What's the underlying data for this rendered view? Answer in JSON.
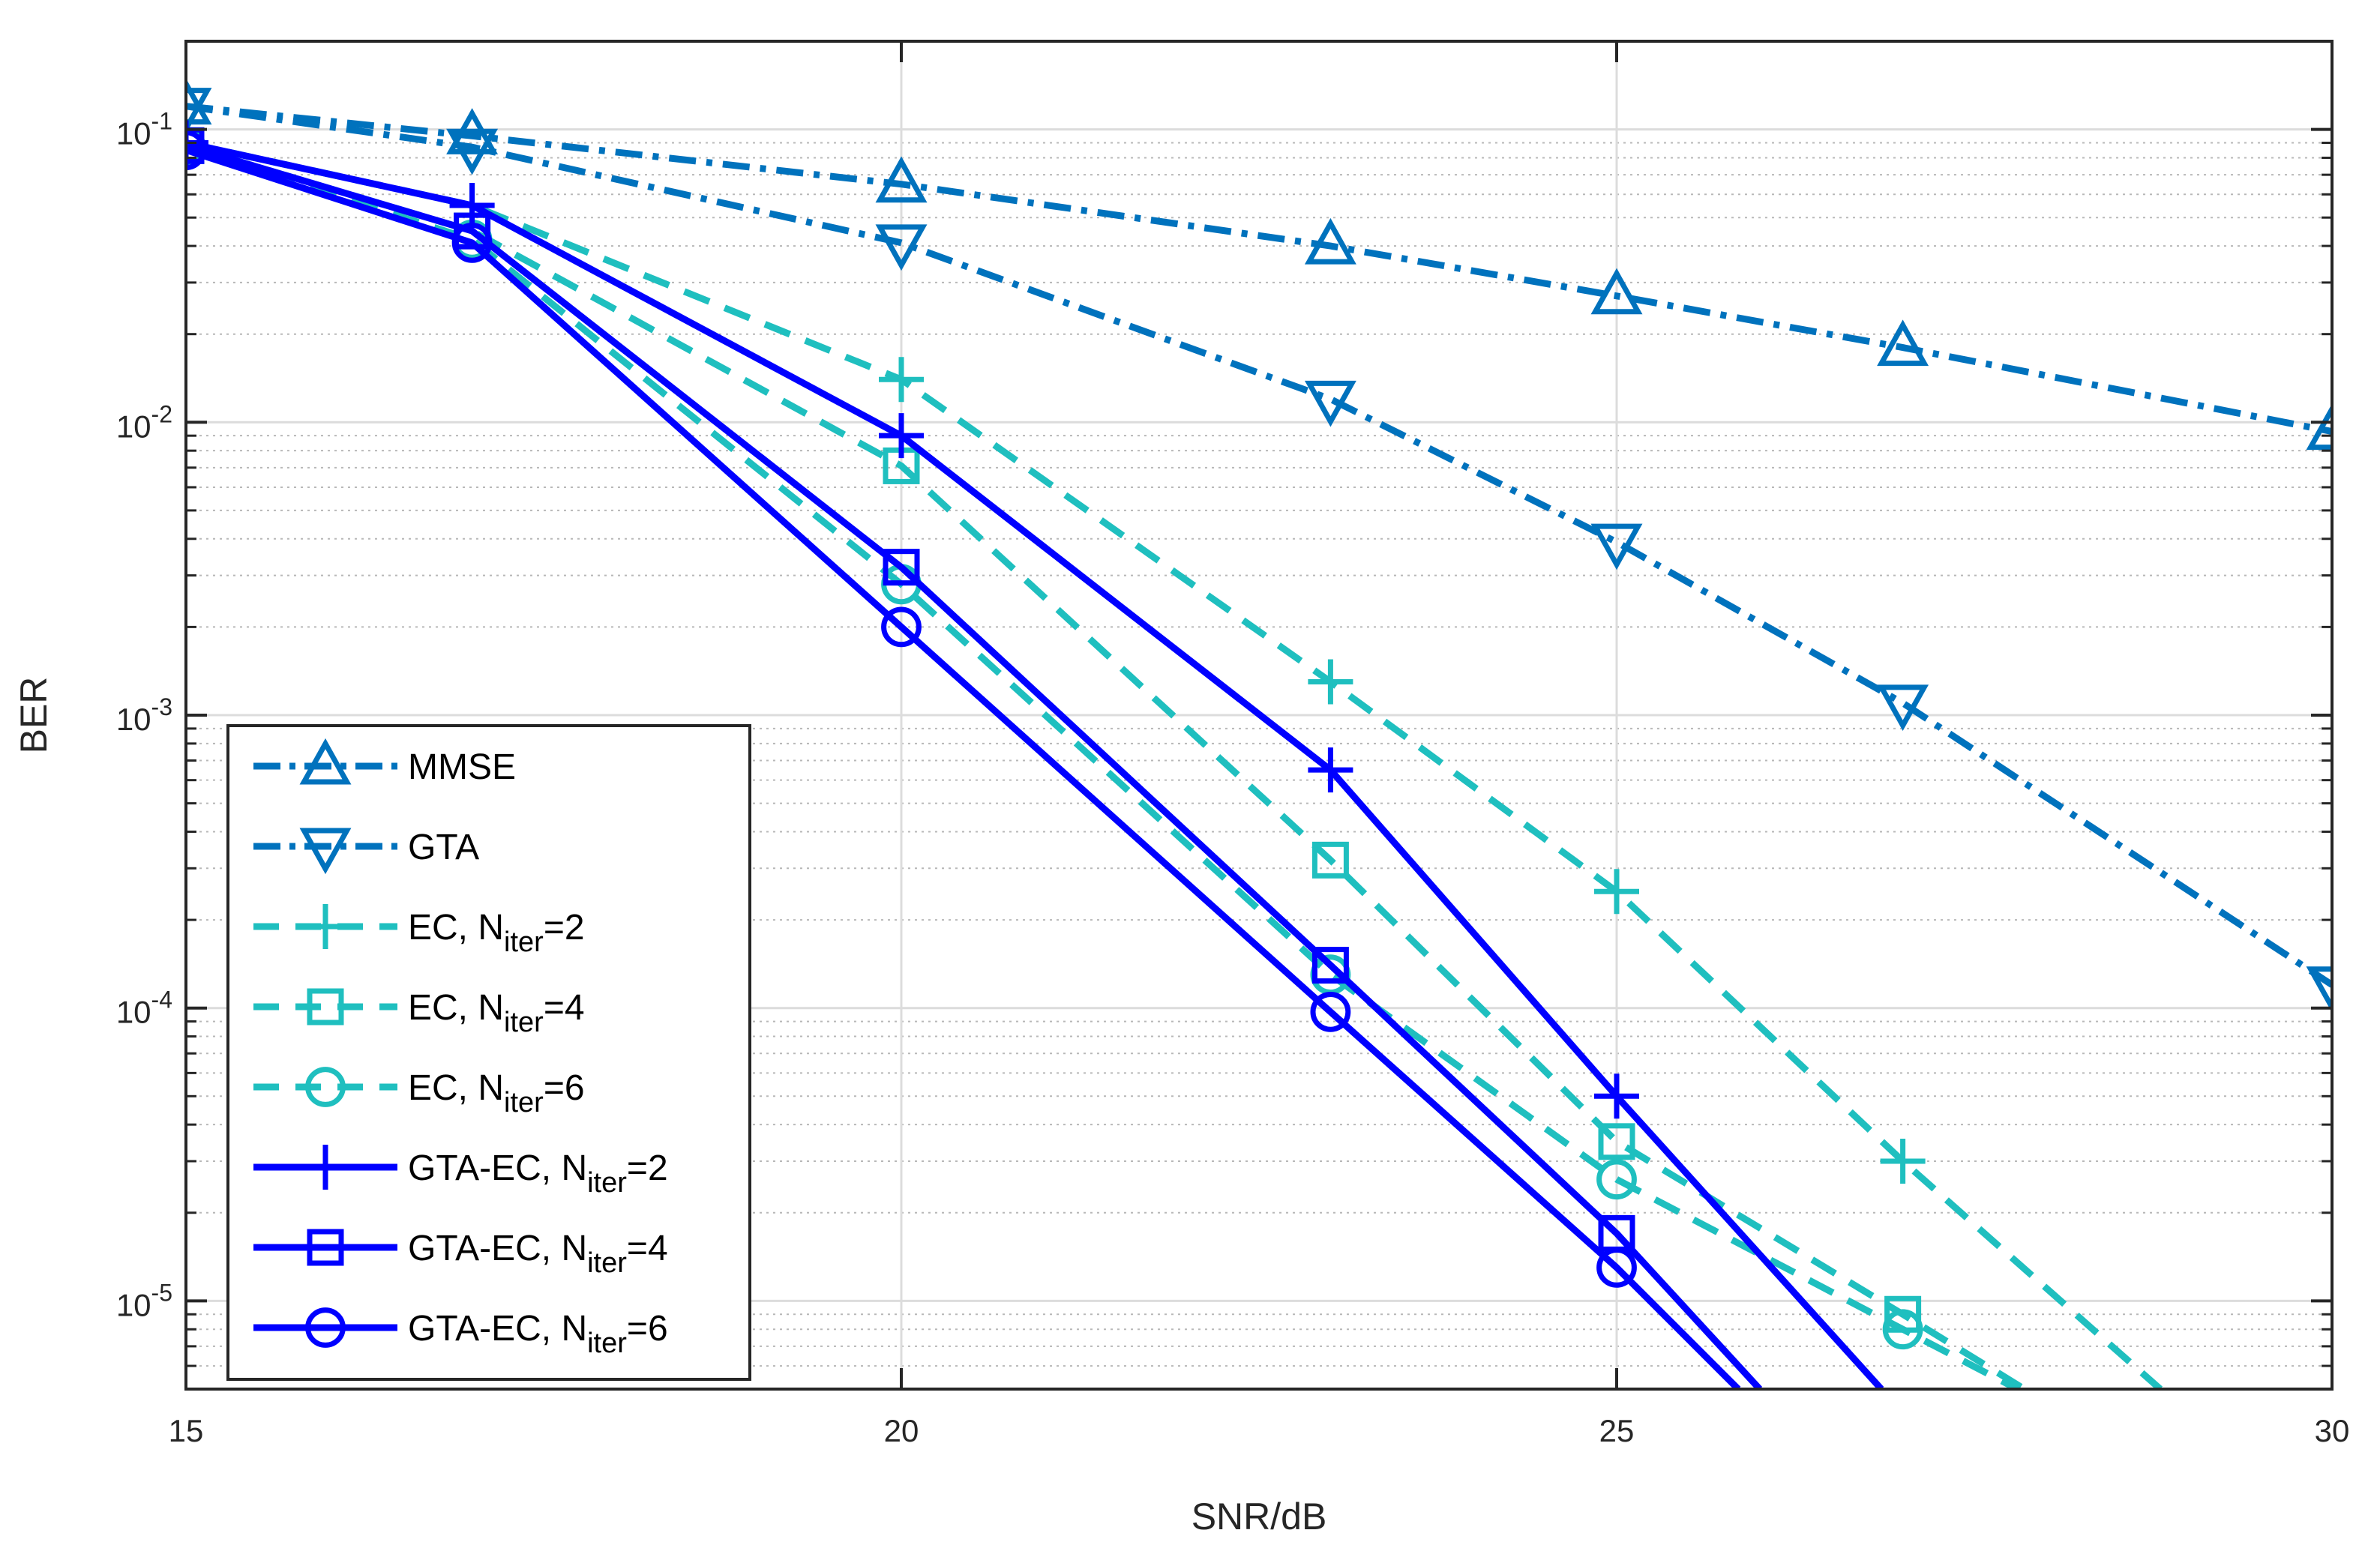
{
  "chart_data": {
    "type": "line",
    "title": "",
    "xlabel": "SNR/dB",
    "ylabel": "BER",
    "xlim": [
      15,
      30
    ],
    "ylim": [
      5e-06,
      0.2
    ],
    "yscale": "log",
    "grid": true,
    "x_ticks": [
      {
        "value": 15,
        "label": "15"
      },
      {
        "value": 20,
        "label": "20"
      },
      {
        "value": 25,
        "label": "25"
      },
      {
        "value": 30,
        "label": "30"
      }
    ],
    "y_ticks": [
      {
        "value": 1e-05,
        "base": "10",
        "exp": "-5"
      },
      {
        "value": 0.0001,
        "base": "10",
        "exp": "-4"
      },
      {
        "value": 0.001,
        "base": "10",
        "exp": "-3"
      },
      {
        "value": 0.01,
        "base": "10",
        "exp": "-2"
      },
      {
        "value": 0.1,
        "base": "10",
        "exp": "-1"
      }
    ],
    "legend_position": "bottom-left",
    "series": [
      {
        "name": "MMSE",
        "label_main": "MMSE",
        "label_sub": "",
        "label_tail": "",
        "color": "#0072BD",
        "style": "dashdot",
        "marker": "triangle-up",
        "x": [
          15,
          17,
          20,
          23,
          25,
          27,
          30
        ],
        "y": [
          0.12,
          0.095,
          0.065,
          0.04,
          0.027,
          0.018,
          0.0093
        ]
      },
      {
        "name": "GTA",
        "label_main": "GTA",
        "label_sub": "",
        "label_tail": "",
        "color": "#0072BD",
        "style": "dashdot",
        "marker": "triangle-down",
        "x": [
          15,
          17,
          20,
          23,
          25,
          27,
          30
        ],
        "y": [
          0.12,
          0.087,
          0.041,
          0.012,
          0.0039,
          0.0011,
          0.00012
        ]
      },
      {
        "name": "EC, N_iter=2",
        "label_main": "EC, N",
        "label_sub": "iter",
        "label_tail": "=2",
        "color": "#1FBFBF",
        "style": "dashed",
        "marker": "plus",
        "x": [
          15,
          17,
          20,
          23,
          25,
          27,
          28.8
        ],
        "y": [
          0.09,
          0.055,
          0.014,
          0.0013,
          0.00025,
          3e-05,
          5e-06
        ]
      },
      {
        "name": "EC, N_iter=4",
        "label_main": "EC, N",
        "label_sub": "iter",
        "label_tail": "=4",
        "color": "#1FBFBF",
        "style": "dashed",
        "marker": "square",
        "x": [
          15,
          17,
          20,
          23,
          25,
          27,
          27.85
        ],
        "y": [
          0.088,
          0.045,
          0.0071,
          0.00032,
          3.5e-05,
          9e-06,
          5e-06
        ]
      },
      {
        "name": "EC, N_iter=6",
        "label_main": "EC, N",
        "label_sub": "iter",
        "label_tail": "=6",
        "color": "#1FBFBF",
        "style": "dashed",
        "marker": "circle",
        "x": [
          15,
          17,
          20,
          23,
          25,
          27,
          27.8
        ],
        "y": [
          0.087,
          0.042,
          0.0028,
          0.00013,
          2.6e-05,
          8e-06,
          5e-06
        ]
      },
      {
        "name": "GTA-EC, N_iter=2",
        "label_main": "GTA-EC, N",
        "label_sub": "iter",
        "label_tail": "=2",
        "color": "#0000FF",
        "style": "solid",
        "marker": "plus",
        "x": [
          15,
          17,
          20,
          23,
          25,
          26.85
        ],
        "y": [
          0.09,
          0.055,
          0.009,
          0.00065,
          5e-05,
          5e-06
        ]
      },
      {
        "name": "GTA-EC, N_iter=4",
        "label_main": "GTA-EC, N",
        "label_sub": "iter",
        "label_tail": "=4",
        "color": "#0000FF",
        "style": "solid",
        "marker": "square",
        "x": [
          15,
          17,
          20,
          23,
          25,
          26.0
        ],
        "y": [
          0.088,
          0.045,
          0.0032,
          0.00014,
          1.7e-05,
          5e-06
        ]
      },
      {
        "name": "GTA-EC, N_iter=6",
        "label_main": "GTA-EC, N",
        "label_sub": "iter",
        "label_tail": "=6",
        "color": "#0000FF",
        "style": "solid",
        "marker": "circle",
        "x": [
          15,
          17,
          20,
          23,
          25,
          25.85
        ],
        "y": [
          0.085,
          0.041,
          0.002,
          9.7e-05,
          1.3e-05,
          5e-06
        ]
      }
    ]
  }
}
